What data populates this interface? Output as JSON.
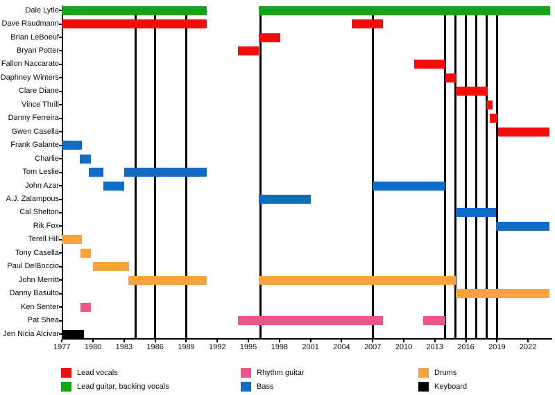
{
  "chart_data": {
    "type": "bar",
    "subtype": "band-member-timeline-gantt",
    "title": "",
    "x_axis": {
      "min_year": 1977,
      "max_year": 2024.2,
      "tick_years": [
        1977,
        1980,
        1983,
        1986,
        1989,
        1992,
        1995,
        1998,
        2001,
        2004,
        2007,
        2010,
        2013,
        2016,
        2019,
        2022
      ]
    },
    "colors": {
      "red": "#f40b0b",
      "green": "#16a316",
      "blue": "#0e6bc7",
      "pink": "#f0548c",
      "orange": "#f8a33c",
      "black": "#000000"
    },
    "event_line_years": [
      1984.1,
      1986.0,
      1989.0,
      1996.2,
      2007.0,
      2014.0,
      2015.0,
      2016.0,
      2017.0,
      2018.0,
      2019.0
    ],
    "members": [
      {
        "name": "Dale Lytle",
        "role": "Lead guitar, backing vocals",
        "color": "green",
        "segments": [
          [
            1977.0,
            1991.0
          ],
          [
            1996.0,
            2024.1
          ]
        ]
      },
      {
        "name": "Dave Raudmann",
        "role": "Lead vocals",
        "color": "red",
        "segments": [
          [
            1977.0,
            1991.0
          ],
          [
            2005.0,
            2008.0
          ]
        ]
      },
      {
        "name": "Brian LeBoeuf",
        "role": "Lead vocals",
        "color": "red",
        "segments": [
          [
            1996.0,
            1998.1
          ]
        ]
      },
      {
        "name": "Bryan Potter",
        "role": "Lead vocals",
        "color": "red",
        "segments": [
          [
            1994.0,
            1996.0
          ]
        ]
      },
      {
        "name": "Fallon Naccarato",
        "role": "Lead vocals",
        "color": "red",
        "segments": [
          [
            2011.0,
            2014.0
          ]
        ]
      },
      {
        "name": "Daphney Winters",
        "role": "Lead vocals",
        "color": "red",
        "segments": [
          [
            2014.0,
            2015.0
          ]
        ]
      },
      {
        "name": "Clare Diane",
        "role": "Lead vocals",
        "color": "red",
        "segments": [
          [
            2015.0,
            2018.1
          ]
        ]
      },
      {
        "name": "Vince Thrill",
        "role": "Lead vocals",
        "color": "red",
        "segments": [
          [
            2018.0,
            2018.6
          ]
        ]
      },
      {
        "name": "Danny Ferreira",
        "role": "Lead vocals",
        "color": "red",
        "segments": [
          [
            2018.3,
            2019.1
          ]
        ]
      },
      {
        "name": "Gwen Casella",
        "role": "Lead vocals",
        "color": "red",
        "segments": [
          [
            2019.1,
            2024.1
          ]
        ]
      },
      {
        "name": "Frank Galante",
        "role": "Bass",
        "color": "blue",
        "segments": [
          [
            1977.0,
            1978.9
          ]
        ]
      },
      {
        "name": "Charlie",
        "role": "Bass",
        "color": "blue",
        "segments": [
          [
            1978.7,
            1979.8
          ]
        ]
      },
      {
        "name": "Tom Leslie",
        "role": "Bass",
        "color": "blue",
        "segments": [
          [
            1979.6,
            1981.0
          ],
          [
            1983.0,
            1991.0
          ]
        ]
      },
      {
        "name": "John Azar",
        "role": "Bass",
        "color": "blue",
        "segments": [
          [
            1981.0,
            1983.0
          ],
          [
            2007.0,
            2014.0
          ]
        ]
      },
      {
        "name": "A.J. Zalampous",
        "role": "Bass",
        "color": "blue",
        "segments": [
          [
            1996.0,
            2001.0
          ]
        ]
      },
      {
        "name": "Cal Shelton",
        "role": "Bass",
        "color": "blue",
        "segments": [
          [
            2015.0,
            2018.9
          ]
        ]
      },
      {
        "name": "Rik Fox",
        "role": "Bass",
        "color": "blue",
        "segments": [
          [
            2018.9,
            2024.1
          ]
        ]
      },
      {
        "name": "Terell Hill",
        "role": "Drums",
        "color": "orange",
        "segments": [
          [
            1977.0,
            1978.9
          ]
        ]
      },
      {
        "name": "Tony Casella",
        "role": "Drums",
        "color": "orange",
        "segments": [
          [
            1978.8,
            1979.8
          ]
        ]
      },
      {
        "name": "Paul DelBoccio",
        "role": "Drums",
        "color": "orange",
        "segments": [
          [
            1980.0,
            1983.5
          ]
        ]
      },
      {
        "name": "John Merritt",
        "role": "Drums",
        "color": "orange",
        "segments": [
          [
            1983.4,
            1991.0
          ],
          [
            1996.0,
            2015.0
          ]
        ]
      },
      {
        "name": "Danny Basulto",
        "role": "Drums",
        "color": "orange",
        "segments": [
          [
            2015.0,
            2024.1
          ]
        ]
      },
      {
        "name": "Ken Senter",
        "role": "Rhythm guitar",
        "color": "pink",
        "segments": [
          [
            1978.8,
            1979.8
          ]
        ]
      },
      {
        "name": "Pat Shea",
        "role": "Rhythm guitar",
        "color": "pink",
        "segments": [
          [
            1994.0,
            2008.0
          ],
          [
            2011.9,
            2014.0
          ]
        ]
      },
      {
        "name": "Jen Nicia Alcivar",
        "role": "Keyboard",
        "color": "black",
        "segments": [
          [
            1977.0,
            1979.1
          ]
        ]
      }
    ],
    "legend": {
      "columns": [
        [
          {
            "label": "Lead vocals",
            "color": "red"
          },
          {
            "label": "Lead guitar, backing vocals",
            "color": "green"
          }
        ],
        [
          {
            "label": "Rhythm guitar",
            "color": "pink"
          },
          {
            "label": "Bass",
            "color": "blue"
          }
        ],
        [
          {
            "label": "Drums",
            "color": "orange"
          },
          {
            "label": "Keyboard",
            "color": "black"
          }
        ]
      ]
    }
  }
}
